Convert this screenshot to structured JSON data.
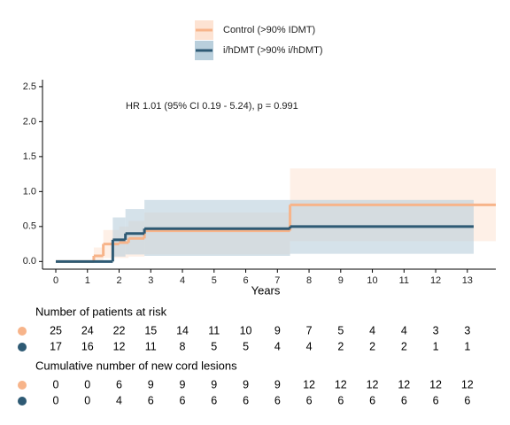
{
  "chart_data": {
    "type": "step",
    "annotation": "HR 1.01 (95% CI 0.19 - 5.24), p = 0.991",
    "x_label": "Years",
    "xlim": [
      -0.42,
      13.9
    ],
    "ylim": [
      -0.11,
      2.6
    ],
    "xticks": [
      0,
      1,
      2,
      3,
      4,
      5,
      6,
      7,
      8,
      9,
      10,
      11,
      12,
      13
    ],
    "yticks": [
      {
        "value": 0,
        "label": "0.0"
      },
      {
        "value": 0.5,
        "label": "0.5"
      },
      {
        "value": 1,
        "label": "1.0"
      },
      {
        "value": 1.5,
        "label": "1.5"
      },
      {
        "value": 2,
        "label": "2.0"
      },
      {
        "value": 2.5,
        "label": "2.5"
      }
    ],
    "series": [
      {
        "name": "Control (>90% IDMT)",
        "color": "#f7b48a",
        "band_color": "#fde3d3",
        "x": [
          0,
          1.2,
          1.5,
          2.0,
          2.3,
          2.8,
          7.4,
          13.9
        ],
        "values": [
          0,
          0.08,
          0.25,
          0.27,
          0.33,
          0.44,
          0.81,
          0.81
        ],
        "ci_lower": [
          0,
          0,
          0.05,
          0.05,
          0.07,
          0.1,
          0.29,
          0.29
        ],
        "ci_upper": [
          0,
          0.2,
          0.45,
          0.5,
          0.58,
          0.7,
          1.33,
          1.33
        ]
      },
      {
        "name": "i/hDMT (>90% i/hDMT)",
        "color": "#2e5a74",
        "band_color": "#b9cfdc",
        "x": [
          0,
          1.8,
          2.2,
          2.8,
          7.4,
          13.2
        ],
        "values": [
          0,
          0.31,
          0.4,
          0.47,
          0.5,
          0.5
        ],
        "ci_lower": [
          0,
          0.07,
          0.1,
          0.08,
          0.11,
          0.11
        ],
        "ci_upper": [
          0,
          0.63,
          0.75,
          0.88,
          0.88,
          0.88
        ]
      }
    ],
    "tables": [
      {
        "title": "Number of patients at risk",
        "rows": [
          [
            25,
            24,
            22,
            15,
            14,
            11,
            10,
            9,
            7,
            5,
            4,
            4,
            3,
            3
          ],
          [
            17,
            16,
            12,
            11,
            8,
            5,
            5,
            4,
            4,
            2,
            2,
            2,
            1,
            1
          ]
        ]
      },
      {
        "title": "Cumulative number of new cord lesions",
        "rows": [
          [
            0,
            0,
            6,
            9,
            9,
            9,
            9,
            9,
            12,
            12,
            12,
            12,
            12,
            12
          ],
          [
            0,
            0,
            4,
            6,
            6,
            6,
            6,
            6,
            6,
            6,
            6,
            6,
            6,
            6
          ]
        ]
      }
    ]
  }
}
